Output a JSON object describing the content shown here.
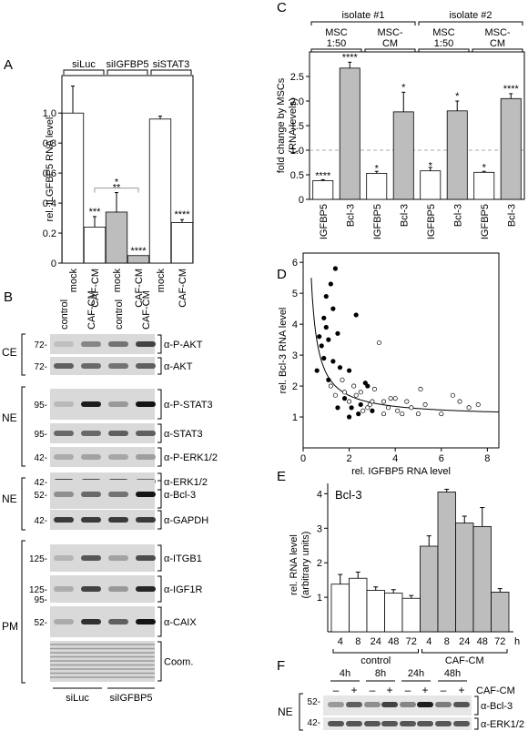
{
  "panels": {
    "A": "A",
    "B": "B",
    "C": "C",
    "D": "D",
    "E": "E",
    "F": "F"
  },
  "colors": {
    "white_bar": "#ffffff",
    "gray_bar": "#bdbdbd",
    "filled_point": "#000000",
    "blot_bg": "#d9d9d9"
  },
  "chart_data": [
    {
      "panel": "A",
      "type": "bar",
      "ylabel": "rel. ILGFBP5 RNA level",
      "ylim": [
        0,
        1.25
      ],
      "yticks": [
        "0",
        "0.2",
        "0.4",
        "0.6",
        "0.8",
        "1.0"
      ],
      "categories": [
        "mock",
        "CAF-CM",
        "mock",
        "CAF-CM",
        "mock",
        "CAF-CM"
      ],
      "groups": [
        {
          "label": "siLuc",
          "start": 0,
          "end": 1
        },
        {
          "label": "siIGFBP5",
          "start": 2,
          "end": 3
        },
        {
          "label": "siSTAT3",
          "start": 4,
          "end": 5
        }
      ],
      "values": [
        1.0,
        0.24,
        0.34,
        0.05,
        0.96,
        0.27
      ],
      "errors": [
        0.18,
        0.07,
        0.13,
        0.0,
        0.02,
        0.02
      ],
      "fills": [
        "white",
        "white",
        "gray",
        "gray",
        "white",
        "white"
      ],
      "stars": [
        "",
        "***",
        "**",
        "****",
        "",
        "****"
      ],
      "bracket_label": "*"
    },
    {
      "panel": "C",
      "type": "bar",
      "ylabel": [
        "fold change by MSCs",
        "(RNA levels)"
      ],
      "ylim": [
        0,
        3.0
      ],
      "yticks": [
        "0",
        "0.5",
        "1.0",
        "1.5",
        "2.0",
        "2.5"
      ],
      "reference_line": 1.0,
      "categories": [
        "IGFBP5",
        "Bcl-3",
        "IGFBP5",
        "Bcl-3",
        "IGFBP5",
        "Bcl-3",
        "IGFBP5",
        "Bcl-3"
      ],
      "values": [
        0.38,
        2.67,
        0.53,
        1.78,
        0.58,
        1.8,
        0.55,
        2.05
      ],
      "errors": [
        0.02,
        0.12,
        0.04,
        0.4,
        0.07,
        0.2,
        0.02,
        0.1
      ],
      "fills": [
        "white",
        "gray",
        "white",
        "gray",
        "white",
        "gray",
        "white",
        "gray"
      ],
      "stars": [
        "****",
        "****",
        "*",
        "*",
        "*",
        "*",
        "*",
        "****"
      ],
      "isolates": [
        {
          "label": "isolate #1",
          "conditions": [
            [
              "MSC",
              "1:50"
            ],
            [
              "MSC-",
              "CM"
            ]
          ]
        },
        {
          "label": "isolate #2",
          "conditions": [
            [
              "MSC",
              "1:50"
            ],
            [
              "MSC-",
              "CM"
            ]
          ]
        }
      ]
    },
    {
      "panel": "D",
      "type": "scatter",
      "xlabel": "rel. IGFBP5 RNA level",
      "ylabel": "rel. Bcl-3 RNA level",
      "xlim": [
        0,
        8.5
      ],
      "ylim": [
        0,
        6.3
      ],
      "xticks": [
        "0",
        "2",
        "4",
        "6",
        "8"
      ],
      "yticks": [
        "1",
        "2",
        "3",
        "4",
        "5",
        "6"
      ],
      "curve": "y = 1 + 1.35/(x - 0.05)",
      "filled": [
        [
          0.6,
          2.5
        ],
        [
          0.7,
          3.6
        ],
        [
          0.8,
          3.3
        ],
        [
          0.9,
          4.2
        ],
        [
          0.9,
          2.9
        ],
        [
          1.0,
          3.9
        ],
        [
          1.0,
          4.9
        ],
        [
          1.1,
          3.5
        ],
        [
          1.1,
          2.2
        ],
        [
          1.2,
          5.3
        ],
        [
          1.3,
          4.5
        ],
        [
          1.3,
          2.8
        ],
        [
          1.4,
          5.8
        ],
        [
          1.5,
          3.7
        ],
        [
          1.6,
          2.6
        ],
        [
          1.8,
          1.6
        ],
        [
          2.0,
          2.5
        ],
        [
          2.0,
          1.0
        ],
        [
          2.1,
          1.3
        ],
        [
          2.3,
          4.3
        ],
        [
          2.4,
          1.1
        ],
        [
          2.5,
          1.4
        ],
        [
          2.7,
          2.1
        ],
        [
          2.8,
          2.0
        ],
        [
          3.0,
          1.2
        ],
        [
          1.5,
          1.3
        ]
      ],
      "open": [
        [
          1.2,
          2.0
        ],
        [
          1.4,
          1.7
        ],
        [
          1.7,
          2.2
        ],
        [
          1.8,
          1.8
        ],
        [
          2.0,
          1.5
        ],
        [
          2.2,
          2.0
        ],
        [
          2.3,
          1.7
        ],
        [
          2.5,
          1.8
        ],
        [
          2.6,
          1.2
        ],
        [
          2.8,
          1.3
        ],
        [
          3.0,
          1.5
        ],
        [
          3.1,
          1.9
        ],
        [
          3.3,
          3.4
        ],
        [
          3.5,
          1.1
        ],
        [
          3.7,
          1.3
        ],
        [
          3.8,
          1.6
        ],
        [
          4.0,
          1.6
        ],
        [
          4.1,
          1.2
        ],
        [
          4.3,
          1.1
        ],
        [
          4.5,
          1.5
        ],
        [
          4.7,
          1.3
        ],
        [
          5.0,
          1.1
        ],
        [
          5.1,
          1.9
        ],
        [
          5.3,
          1.4
        ],
        [
          6.0,
          1.1
        ],
        [
          6.5,
          1.7
        ],
        [
          6.8,
          1.5
        ],
        [
          7.2,
          1.3
        ],
        [
          7.6,
          1.4
        ],
        [
          3.5,
          1.5
        ],
        [
          2.9,
          1.4
        ]
      ]
    },
    {
      "panel": "E",
      "type": "bar",
      "title": "Bcl-3",
      "ylabel": [
        "rel. RNA level",
        "(arbitrary units)"
      ],
      "ylim": [
        0,
        4.3
      ],
      "yticks": [
        "1",
        "2",
        "3",
        "4"
      ],
      "categories": [
        "4",
        "8",
        "24",
        "48",
        "72",
        "4",
        "8",
        "24",
        "48",
        "72"
      ],
      "unit": "h",
      "values": [
        1.38,
        1.55,
        1.2,
        1.12,
        0.97,
        2.48,
        4.05,
        3.15,
        3.05,
        1.15
      ],
      "errors": [
        0.28,
        0.18,
        0.1,
        0.1,
        0.08,
        0.3,
        0.08,
        0.2,
        0.55,
        0.1
      ],
      "fills": [
        "white",
        "white",
        "white",
        "white",
        "white",
        "gray",
        "gray",
        "gray",
        "gray",
        "gray"
      ],
      "groups": [
        {
          "label": "control",
          "start": 0,
          "end": 4
        },
        {
          "label": "CAF-CM",
          "start": 5,
          "end": 9
        }
      ]
    }
  ],
  "blot_B": {
    "lanes": [
      "control",
      "CAF-CM",
      "control",
      "CAF-CM"
    ],
    "bottom": [
      "siLuc",
      "siIGFBP5"
    ],
    "rows": [
      {
        "marker": "72-",
        "label": "α-P-AKT"
      },
      {
        "marker": "72-",
        "label": "α-AKT"
      },
      {
        "marker": "95-",
        "label": "α-P-STAT3"
      },
      {
        "marker": "95-",
        "label": "α-STAT3"
      },
      {
        "marker": "42-",
        "label": "α-P-ERK1/2"
      },
      {
        "marker": "42-",
        "label": "α-ERK1/2"
      },
      {
        "marker": "52-",
        "label": "α-Bcl-3"
      },
      {
        "marker": "42-",
        "label": "α-GAPDH"
      },
      {
        "marker": "125-",
        "label": "α-ITGB1"
      },
      {
        "marker": "125-",
        "marker2": "95-",
        "label": "α-IGF1R"
      },
      {
        "marker": "52-",
        "label": "α-CAIX"
      },
      {
        "marker": "",
        "label": "Coom."
      }
    ],
    "fractions": [
      {
        "label": "CE"
      },
      {
        "label": "NE"
      },
      {
        "label": "NE"
      },
      {
        "label": "PM"
      }
    ]
  },
  "blot_F": {
    "timepoints": [
      "4h",
      "8h",
      "24h",
      "48h"
    ],
    "signs": [
      "–",
      "+",
      "–",
      "+",
      "–",
      "+",
      "–",
      "+"
    ],
    "treatment": "CAF-CM",
    "fraction": "NE",
    "markers": [
      "52-",
      "42-"
    ],
    "labels": [
      "α-Bcl-3",
      "α-ERK1/2"
    ]
  }
}
